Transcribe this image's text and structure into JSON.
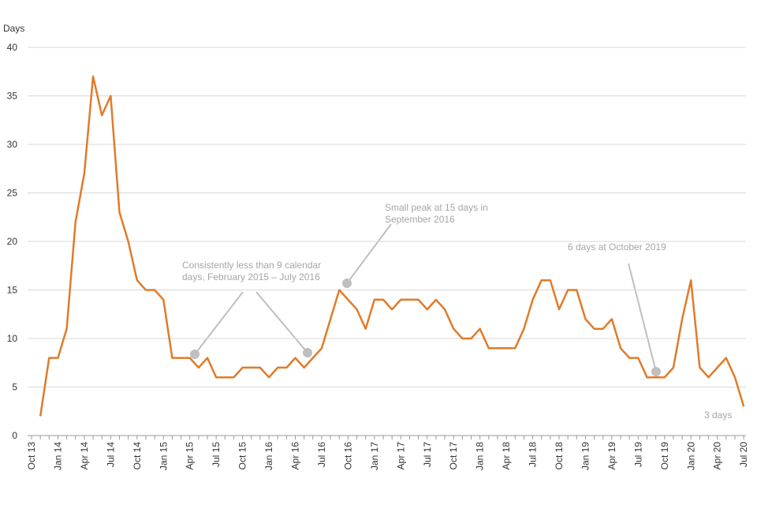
{
  "chart_data": {
    "type": "line",
    "y_axis_label": "Days",
    "categories": [
      "Oct 13",
      null,
      null,
      "Jan 14",
      null,
      null,
      "Apr 14",
      null,
      null,
      "Jul 14",
      null,
      null,
      "Oct 14",
      null,
      null,
      "Jan 15",
      null,
      null,
      "Apr 15",
      null,
      null,
      "Jul 15",
      null,
      null,
      "Oct 15",
      null,
      null,
      "Jan 16",
      null,
      null,
      "Apr 16",
      null,
      null,
      "Jul 16",
      null,
      null,
      "Oct 16",
      null,
      null,
      "Jan 17",
      null,
      null,
      "Apr 17",
      null,
      null,
      "Jul 17",
      null,
      null,
      "Oct 17",
      null,
      null,
      "Jan 18",
      null,
      null,
      "Apr 18",
      null,
      null,
      "Jul 18",
      null,
      null,
      "Oct 18",
      null,
      null,
      "Jan 19",
      null,
      null,
      "Apr 19",
      null,
      null,
      "Jul 19",
      null,
      null,
      "Oct 19",
      null,
      null,
      "Jan 20",
      null,
      null,
      "Apr 20",
      null,
      null,
      "Jul 20"
    ],
    "series": [
      {
        "name": "Days",
        "color": "#e07b2a",
        "values": [
          null,
          2,
          8,
          8,
          11,
          22,
          27,
          37,
          33,
          35,
          23,
          20,
          16,
          15,
          15,
          14,
          8,
          8,
          8,
          7,
          8,
          6,
          6,
          6,
          7,
          7,
          7,
          6,
          7,
          7,
          8,
          7,
          8,
          9,
          12,
          15,
          14,
          13,
          11,
          14,
          14,
          13,
          14,
          14,
          14,
          13,
          14,
          13,
          11,
          10,
          10,
          11,
          9,
          9,
          9,
          9,
          11,
          14,
          16,
          16,
          13,
          15,
          15,
          12,
          11,
          11,
          12,
          9,
          8,
          8,
          6,
          6,
          6,
          7,
          12,
          16,
          7,
          6,
          7,
          8,
          6,
          3
        ]
      }
    ],
    "ylim": [
      0,
      40
    ],
    "yticks": [
      0,
      5,
      10,
      15,
      20,
      25,
      30,
      35,
      40
    ],
    "grid": true,
    "annotations": [
      {
        "lines": [
          "Consistently less than 9 calendar",
          "days, February 2015 – July 2016"
        ]
      },
      {
        "lines": [
          "Small peak at 15 days in",
          "September 2016"
        ]
      },
      {
        "lines": [
          "6 days at October 2019"
        ]
      },
      {
        "lines": [
          "3 days"
        ]
      }
    ]
  }
}
